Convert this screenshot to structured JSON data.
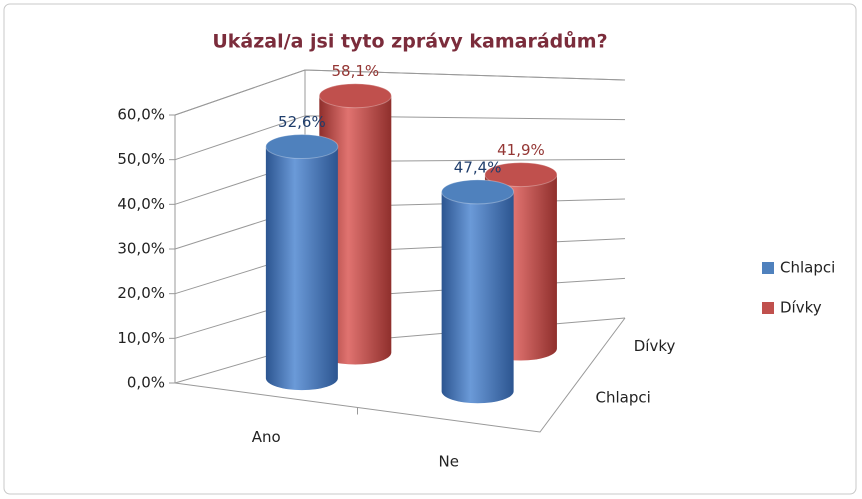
{
  "chart_data": {
    "type": "cylinder3d",
    "title": "Ukázal/a jsi tyto zprávy kamarádům?",
    "categories": [
      "Ano",
      "Ne"
    ],
    "series": [
      {
        "name": "Chlapci",
        "color": "#4f81bd",
        "label_color": "#1f3d6b",
        "values": [
          52.6,
          47.4
        ],
        "value_labels": [
          "52,6%",
          "47,4%"
        ]
      },
      {
        "name": "Dívky",
        "color": "#c0504d",
        "label_color": "#943634",
        "values": [
          58.1,
          41.9
        ],
        "value_labels": [
          "58,1%",
          "41,9%"
        ]
      }
    ],
    "ylim": [
      0,
      60
    ],
    "yticks": [
      {
        "value": 0,
        "label": "0,0%"
      },
      {
        "value": 10,
        "label": "10,0%"
      },
      {
        "value": 20,
        "label": "20,0%"
      },
      {
        "value": 30,
        "label": "30,0%"
      },
      {
        "value": 40,
        "label": "40,0%"
      },
      {
        "value": 50,
        "label": "50,0%"
      },
      {
        "value": 60,
        "label": "60,0%"
      }
    ],
    "grid": true,
    "legend": "right"
  }
}
